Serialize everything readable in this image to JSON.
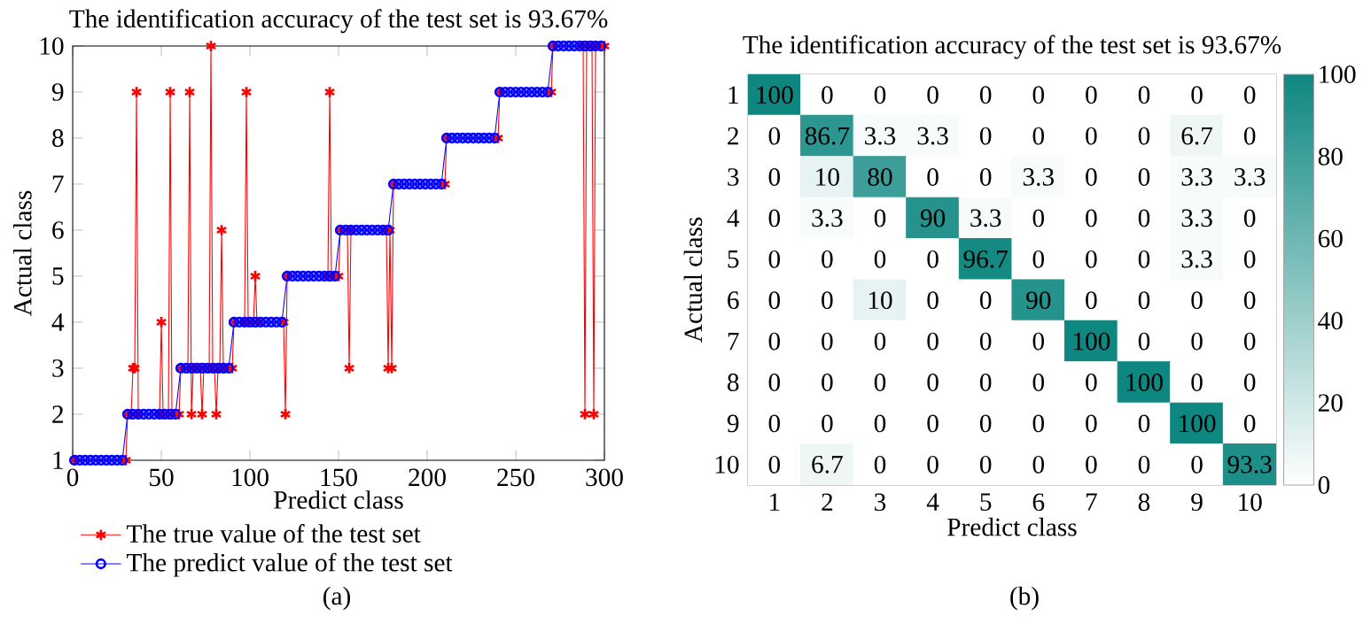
{
  "chart_data": [
    {
      "type": "line",
      "title": "The identification accuracy of the test set is 93.67%",
      "xlabel": "Predict class",
      "ylabel": "Actual class",
      "xlim": [
        0,
        300
      ],
      "ylim": [
        1,
        10
      ],
      "xticks": [
        0,
        50,
        100,
        150,
        200,
        250,
        300
      ],
      "yticks": [
        1,
        2,
        3,
        4,
        5,
        6,
        7,
        8,
        9,
        10
      ],
      "legend": "bottom",
      "annotations": [
        "(a)"
      ],
      "series": [
        {
          "name": "The true value of the test set",
          "color": "#ff0000",
          "marker": "cross",
          "x": [
            1,
            30,
            31,
            33,
            34,
            35,
            36,
            37,
            49,
            50,
            51,
            54,
            55,
            56,
            60,
            61,
            65,
            66,
            67,
            68,
            72,
            73,
            74,
            77,
            78,
            79,
            80,
            81,
            82,
            83,
            84,
            85,
            90,
            91,
            97,
            98,
            99,
            102,
            103,
            104,
            119,
            120,
            121,
            144,
            145,
            146,
            150,
            151,
            155,
            156,
            157,
            177,
            178,
            179,
            180,
            181,
            210,
            211,
            240,
            241,
            270,
            271,
            288,
            289,
            290,
            293,
            294,
            295,
            300
          ],
          "values": [
            1,
            1,
            2,
            2,
            3,
            3,
            9,
            2,
            2,
            4,
            2,
            2,
            9,
            2,
            2,
            3,
            3,
            9,
            2,
            3,
            3,
            2,
            3,
            3,
            10,
            3,
            3,
            2,
            3,
            3,
            6,
            3,
            3,
            4,
            4,
            9,
            4,
            4,
            5,
            4,
            4,
            2,
            5,
            5,
            9,
            5,
            5,
            6,
            6,
            3,
            6,
            6,
            3,
            6,
            3,
            7,
            7,
            8,
            8,
            9,
            9,
            10,
            10,
            2,
            10,
            10,
            2,
            10,
            10
          ]
        },
        {
          "name": "The predict value of the test set",
          "color": "#0000ff",
          "marker": "circle",
          "x": [
            1,
            4,
            7,
            10,
            13,
            16,
            19,
            22,
            25,
            28,
            31,
            34,
            37,
            40,
            43,
            46,
            49,
            52,
            55,
            58,
            61,
            64,
            67,
            70,
            73,
            76,
            79,
            82,
            85,
            88,
            91,
            94,
            97,
            100,
            103,
            106,
            109,
            112,
            115,
            118,
            121,
            124,
            127,
            130,
            133,
            136,
            139,
            142,
            145,
            148,
            151,
            154,
            157,
            160,
            163,
            166,
            169,
            172,
            175,
            178,
            181,
            184,
            187,
            190,
            193,
            196,
            199,
            202,
            205,
            208,
            211,
            214,
            217,
            220,
            223,
            226,
            229,
            232,
            235,
            238,
            241,
            244,
            247,
            250,
            253,
            256,
            259,
            262,
            265,
            268,
            271,
            274,
            277,
            280,
            283,
            286,
            289,
            292,
            295,
            298
          ],
          "values": [
            1,
            1,
            1,
            1,
            1,
            1,
            1,
            1,
            1,
            1,
            2,
            2,
            2,
            2,
            2,
            2,
            2,
            2,
            2,
            2,
            3,
            3,
            3,
            3,
            3,
            3,
            3,
            3,
            3,
            3,
            4,
            4,
            4,
            4,
            4,
            4,
            4,
            4,
            4,
            4,
            5,
            5,
            5,
            5,
            5,
            5,
            5,
            5,
            5,
            5,
            6,
            6,
            6,
            6,
            6,
            6,
            6,
            6,
            6,
            6,
            7,
            7,
            7,
            7,
            7,
            7,
            7,
            7,
            7,
            7,
            8,
            8,
            8,
            8,
            8,
            8,
            8,
            8,
            8,
            8,
            9,
            9,
            9,
            9,
            9,
            9,
            9,
            9,
            9,
            9,
            10,
            10,
            10,
            10,
            10,
            10,
            10,
            10,
            10,
            10
          ]
        }
      ]
    },
    {
      "type": "heatmap",
      "title": "The identification accuracy of the test set is 93.67%",
      "xlabel": "Predict class",
      "ylabel": "Actual class",
      "categories": [
        "1",
        "2",
        "3",
        "4",
        "5",
        "6",
        "7",
        "8",
        "9",
        "10"
      ],
      "y_categories": [
        "1",
        "2",
        "3",
        "4",
        "5",
        "6",
        "7",
        "8",
        "9",
        "10"
      ],
      "cells": [
        [
          100,
          0,
          0,
          0,
          0,
          0,
          0,
          0,
          0,
          0
        ],
        [
          0,
          86.7,
          3.3,
          3.3,
          0,
          0,
          0,
          0,
          6.7,
          0
        ],
        [
          0,
          10,
          80,
          0,
          0,
          3.3,
          0,
          0,
          3.3,
          3.3
        ],
        [
          0,
          3.3,
          0,
          90,
          3.3,
          0,
          0,
          0,
          3.3,
          0
        ],
        [
          0,
          0,
          0,
          0,
          96.7,
          0,
          0,
          0,
          3.3,
          0
        ],
        [
          0,
          0,
          10,
          0,
          0,
          90,
          0,
          0,
          0,
          0
        ],
        [
          0,
          0,
          0,
          0,
          0,
          0,
          100,
          0,
          0,
          0
        ],
        [
          0,
          0,
          0,
          0,
          0,
          0,
          0,
          100,
          0,
          0
        ],
        [
          0,
          0,
          0,
          0,
          0,
          0,
          0,
          0,
          100,
          0
        ],
        [
          0,
          6.7,
          0,
          0,
          0,
          0,
          0,
          0,
          0,
          93.3
        ]
      ],
      "data_labels": true,
      "clim": [
        0,
        100
      ],
      "cticks": [
        0,
        20,
        40,
        60,
        80,
        100
      ],
      "annotations": [
        "(b)"
      ]
    }
  ]
}
